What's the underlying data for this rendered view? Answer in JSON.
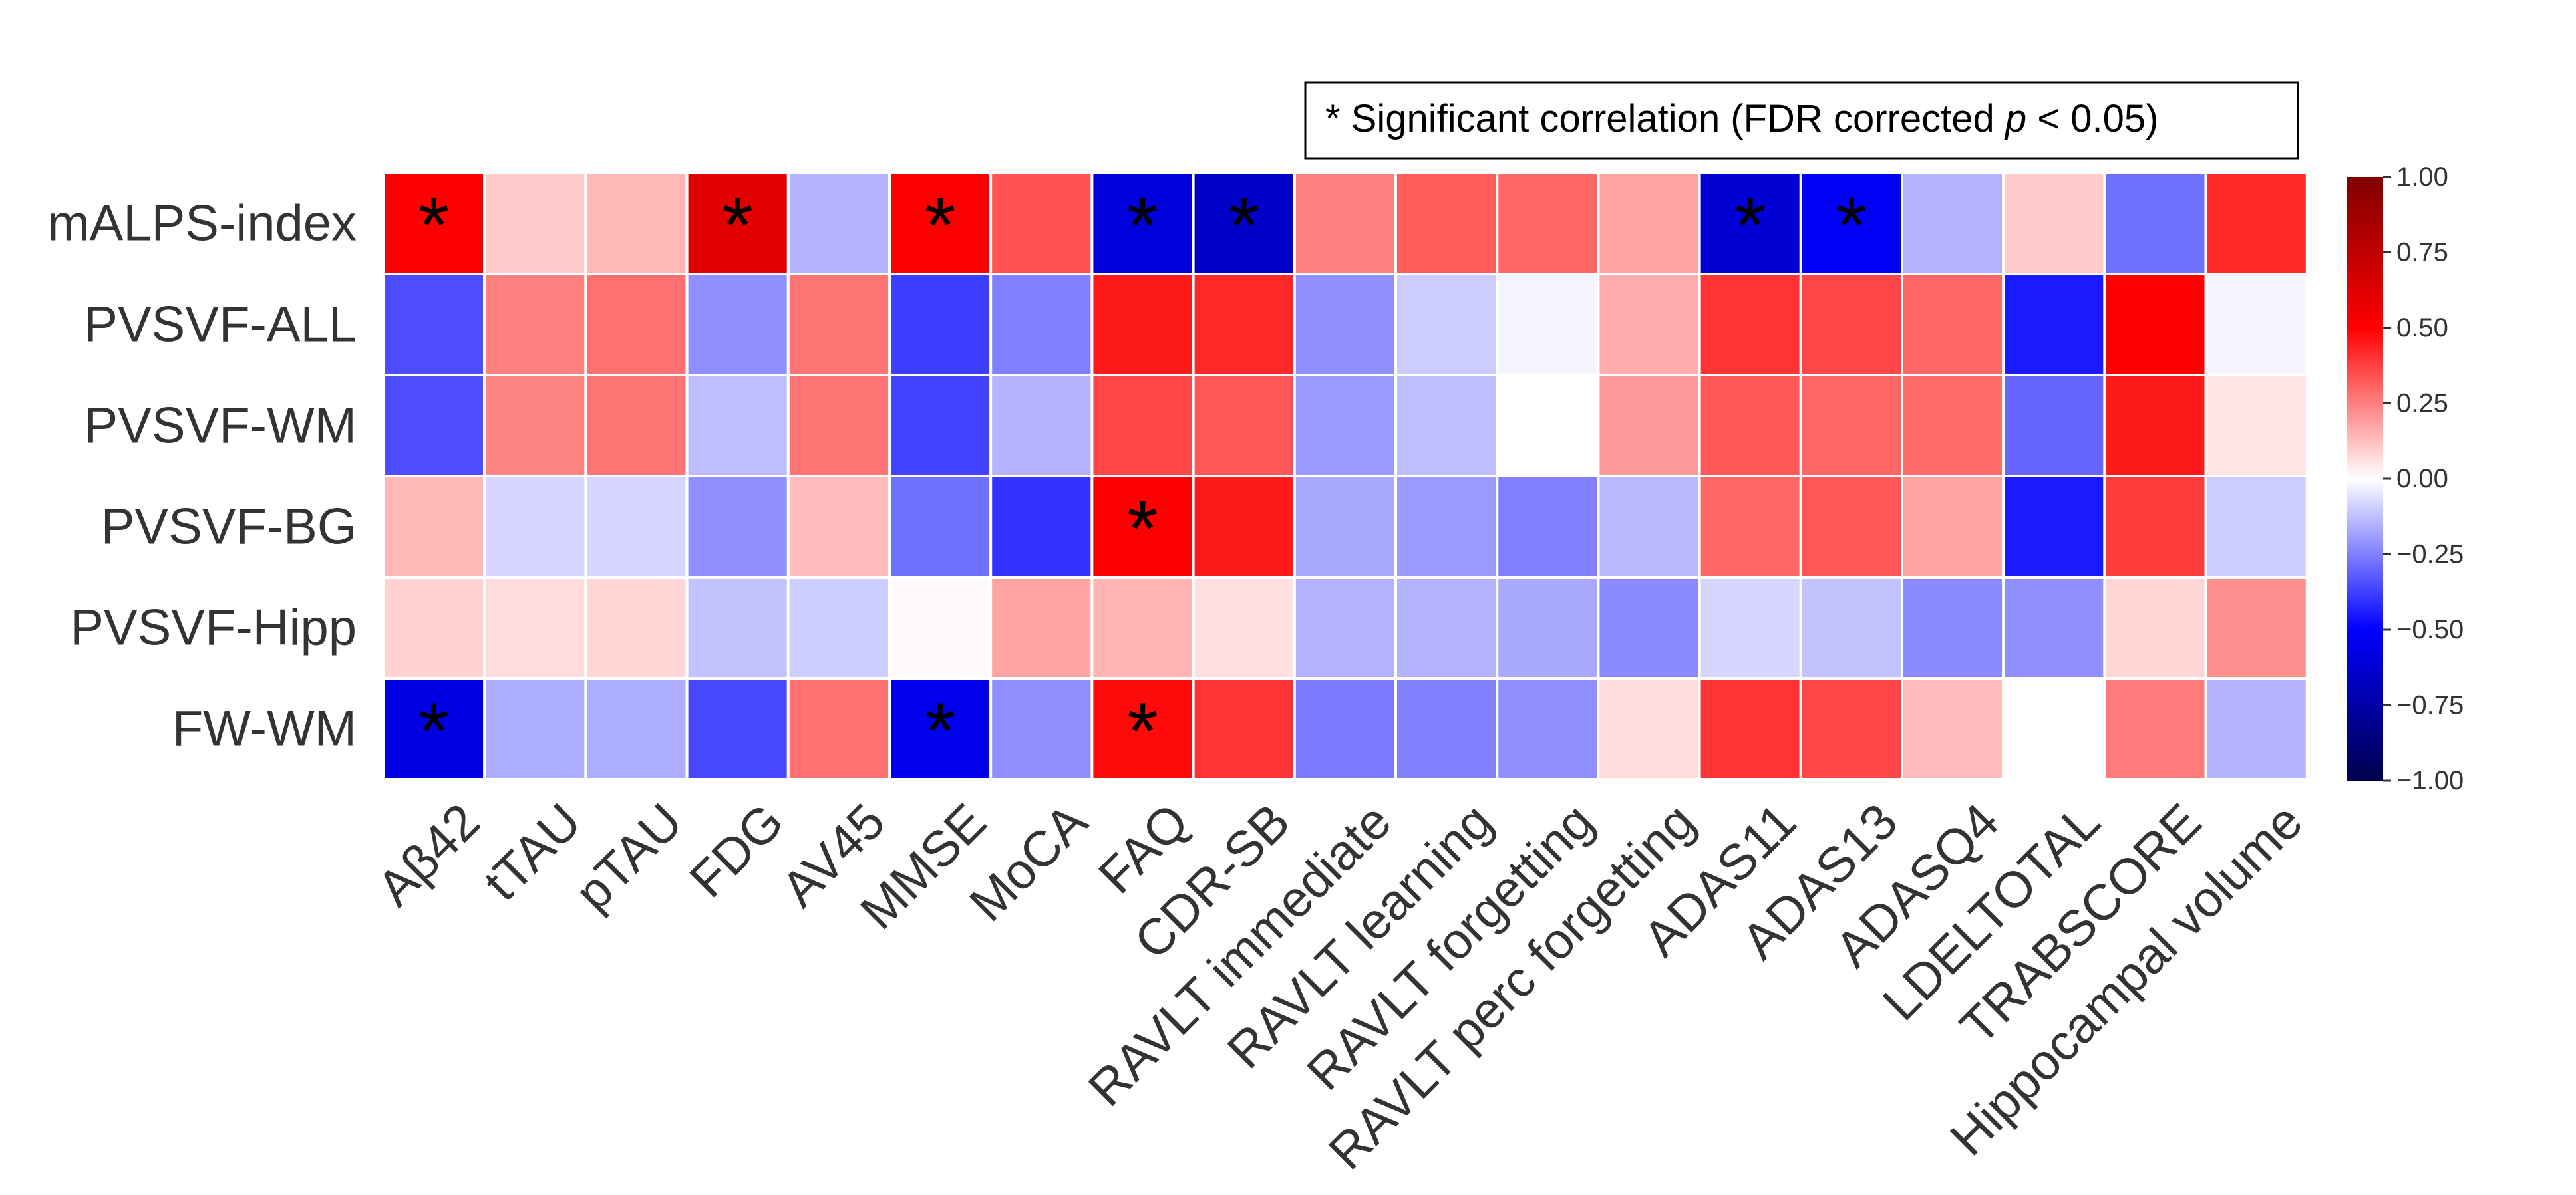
{
  "chart_data": {
    "type": "heatmap",
    "title": "",
    "xlabel": "",
    "ylabel": "",
    "legend_note": {
      "prefix": "* Significant correlation (FDR corrected ",
      "italic": "p",
      "suffix": " < 0.05)"
    },
    "rows": [
      "mALPS-index",
      "PVSVF-ALL",
      "PVSVF-WM",
      "PVSVF-BG",
      "PVSVF-Hipp",
      "FW-WM"
    ],
    "columns": [
      "Aβ42",
      "tTAU",
      "pTAU",
      "FDG",
      "AV45",
      "MMSE",
      "MoCA",
      "FAQ",
      "CDR-SB",
      "RAVLT immediate",
      "RAVLT learning",
      "RAVLT forgetting",
      "RAVLT perc forgetting",
      "ADAS11",
      "ADAS13",
      "ADASQ4",
      "LDELTOTAL",
      "TRABSCORE",
      "Hippocampal volume"
    ],
    "values": [
      [
        0.52,
        0.1,
        0.14,
        0.62,
        -0.15,
        0.52,
        0.34,
        -0.6,
        -0.65,
        0.25,
        0.32,
        0.3,
        0.18,
        -0.62,
        -0.52,
        -0.15,
        0.1,
        -0.28,
        0.42
      ],
      [
        -0.35,
        0.25,
        0.28,
        -0.22,
        0.27,
        -0.38,
        -0.25,
        0.45,
        0.42,
        -0.22,
        -0.1,
        -0.02,
        0.16,
        0.4,
        0.36,
        0.3,
        -0.45,
        0.5,
        -0.02
      ],
      [
        -0.35,
        0.24,
        0.27,
        -0.13,
        0.27,
        -0.37,
        -0.15,
        0.36,
        0.33,
        -0.2,
        -0.13,
        0.0,
        0.2,
        0.33,
        0.3,
        0.29,
        -0.3,
        0.45,
        0.05
      ],
      [
        0.14,
        -0.08,
        -0.08,
        -0.22,
        0.13,
        -0.28,
        -0.4,
        0.52,
        0.45,
        -0.17,
        -0.2,
        -0.25,
        -0.14,
        0.3,
        0.33,
        0.18,
        -0.45,
        0.38,
        -0.1
      ],
      [
        0.09,
        0.07,
        0.08,
        -0.12,
        -0.1,
        0.01,
        0.18,
        0.15,
        0.06,
        -0.15,
        -0.15,
        -0.17,
        -0.23,
        -0.08,
        -0.12,
        -0.23,
        -0.22,
        0.08,
        0.22
      ],
      [
        -0.58,
        -0.16,
        -0.16,
        -0.36,
        0.28,
        -0.55,
        -0.22,
        0.48,
        0.4,
        -0.26,
        -0.25,
        -0.22,
        0.07,
        0.4,
        0.36,
        0.13,
        0.0,
        0.26,
        -0.15
      ]
    ],
    "significant": [
      [
        0,
        0
      ],
      [
        0,
        3
      ],
      [
        0,
        5
      ],
      [
        0,
        7
      ],
      [
        0,
        8
      ],
      [
        0,
        13
      ],
      [
        0,
        14
      ],
      [
        3,
        7
      ],
      [
        5,
        0
      ],
      [
        5,
        5
      ],
      [
        5,
        7
      ]
    ],
    "significance_marker": "*",
    "colormap": "seismic",
    "colors": {
      "low": "#00004c",
      "mid": "#ffffff",
      "high": "#800000"
    },
    "colorbar": {
      "range": [
        -1.0,
        1.0
      ],
      "ticks": [
        1.0,
        0.75,
        0.5,
        0.25,
        0.0,
        -0.25,
        -0.5,
        -0.75,
        -1.0
      ],
      "tick_labels": [
        "1.00",
        "0.75",
        "0.50",
        "0.25",
        "0.00",
        "−0.25",
        "−0.50",
        "−0.75",
        "−1.00"
      ]
    }
  }
}
